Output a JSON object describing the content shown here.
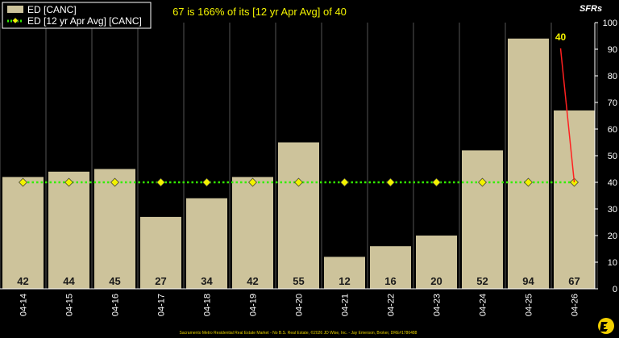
{
  "chart_data": {
    "type": "bar",
    "title": "67 is 166% of its [12 yr Apr Avg] of 40",
    "unit_label": "SFRs",
    "categories": [
      "04-14",
      "04-15",
      "04-16",
      "04-17",
      "04-18",
      "04-19",
      "04-20",
      "04-21",
      "04-22",
      "04-23",
      "04-24",
      "04-25",
      "04-26"
    ],
    "series": [
      {
        "name": "ED [CANC]",
        "type": "bar",
        "color": "#cdc39b",
        "values": [
          42,
          44,
          45,
          27,
          34,
          42,
          55,
          12,
          16,
          20,
          52,
          94,
          67
        ]
      },
      {
        "name": "ED [12 yr Apr Avg] [CANC]",
        "type": "line",
        "color": "#33ee00",
        "marker_color": "#f2f200",
        "values": [
          40,
          40,
          40,
          40,
          40,
          40,
          40,
          40,
          40,
          40,
          40,
          40,
          40
        ]
      }
    ],
    "ylim": [
      0,
      100
    ],
    "yticks": [
      0,
      10,
      20,
      30,
      40,
      50,
      60,
      70,
      80,
      90,
      100
    ],
    "grid": "vertical",
    "legend": "top-left",
    "annotation": {
      "text": "40",
      "category": "04-26",
      "value": 40,
      "color": "#ff2020"
    }
  },
  "footer": "Sacramento Metro Residential Real Estate Market - No B.S. Real Estate, ©2026 JD Wise, Inc. - Jay Emerson, Broker, DRE#1786488"
}
